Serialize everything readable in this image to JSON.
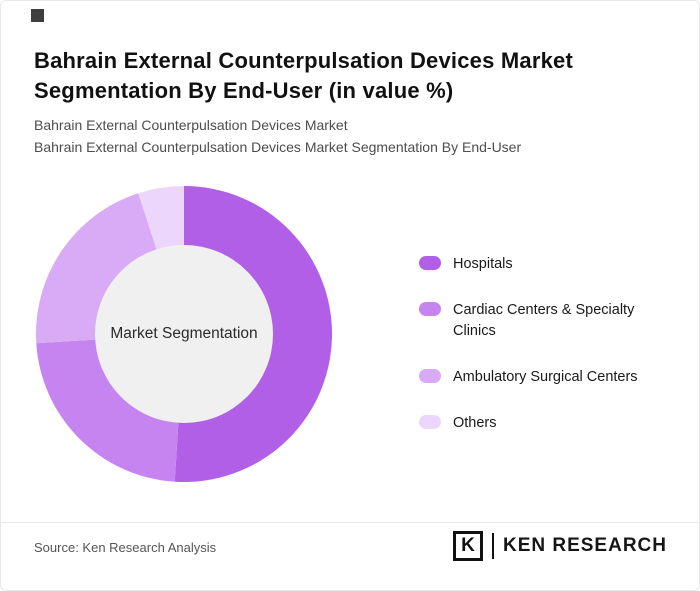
{
  "page": {
    "title": "Bahrain External Counterpulsation Devices Market Segmentation By End-User (in value %)",
    "subtitle_line1": "Bahrain External Counterpulsation Devices Market",
    "subtitle_line2": "Bahrain External Counterpulsation Devices Market Segmentation By End-User",
    "source": "Source: Ken Research Analysis",
    "logo": {
      "letter": "K",
      "text": "KEN RESEARCH"
    }
  },
  "chart_data": {
    "type": "pie",
    "donut": true,
    "title": "Bahrain External Counterpulsation Devices Market Segmentation By End-User (in value %)",
    "center_label": "Market Segmentation",
    "categories": [
      "Hospitals",
      "Cardiac Centers & Specialty Clinics",
      "Ambulatory Surgical Centers",
      "Others"
    ],
    "values": [
      51,
      23,
      21,
      5
    ],
    "colors": [
      "#b25fe8",
      "#c684f0",
      "#d9aaf5",
      "#ecd6fb"
    ],
    "inner_circle_color": "#f0f0f0",
    "legend_position": "right",
    "start_angle": "top",
    "direction": "clockwise"
  }
}
